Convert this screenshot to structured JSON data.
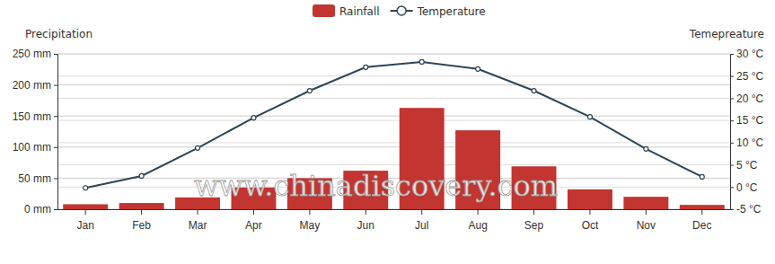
{
  "chart_data": {
    "type": "bar",
    "categories": [
      "Jan",
      "Feb",
      "Mar",
      "Apr",
      "May",
      "Jun",
      "Jul",
      "Aug",
      "Sep",
      "Oct",
      "Nov",
      "Dec"
    ],
    "series": [
      {
        "name": "Rainfall",
        "type": "bar",
        "color": "#c23531",
        "values": [
          8,
          10,
          19,
          35,
          50,
          62,
          163,
          127,
          69,
          32,
          20,
          7
        ]
      },
      {
        "name": "Temperature",
        "type": "line",
        "color": "#2f4554",
        "marker": "circle",
        "axis": "y2",
        "values": [
          -0.2,
          2.5,
          8.8,
          15.6,
          21.7,
          27,
          28.2,
          26.6,
          21.7,
          15.8,
          8.6,
          2.3
        ]
      }
    ],
    "y_label": "Precipitation",
    "y2_label": "Temepreature",
    "ylim": [
      0,
      250
    ],
    "yticks": [
      {
        "value": 0,
        "label": "0 mm"
      },
      {
        "value": 50,
        "label": "50 mm"
      },
      {
        "value": 100,
        "label": "100 mm"
      },
      {
        "value": 150,
        "label": "150 mm"
      },
      {
        "value": 200,
        "label": "200 mm"
      },
      {
        "value": 250,
        "label": "250 mm"
      }
    ],
    "y2lim": [
      -5,
      30
    ],
    "y2ticks": [
      {
        "value": -5,
        "label": "-5 °C"
      },
      {
        "value": 0,
        "label": "0 °C"
      },
      {
        "value": 5,
        "label": "5 °C"
      },
      {
        "value": 10,
        "label": "10 °C"
      },
      {
        "value": 15,
        "label": "15 °C"
      },
      {
        "value": 20,
        "label": "20 °C"
      },
      {
        "value": 25,
        "label": "25 °C"
      },
      {
        "value": 30,
        "label": "30 °C"
      }
    ],
    "grid": true,
    "legend": "top",
    "annotations": [
      "www.chinadiscovery.com"
    ]
  }
}
